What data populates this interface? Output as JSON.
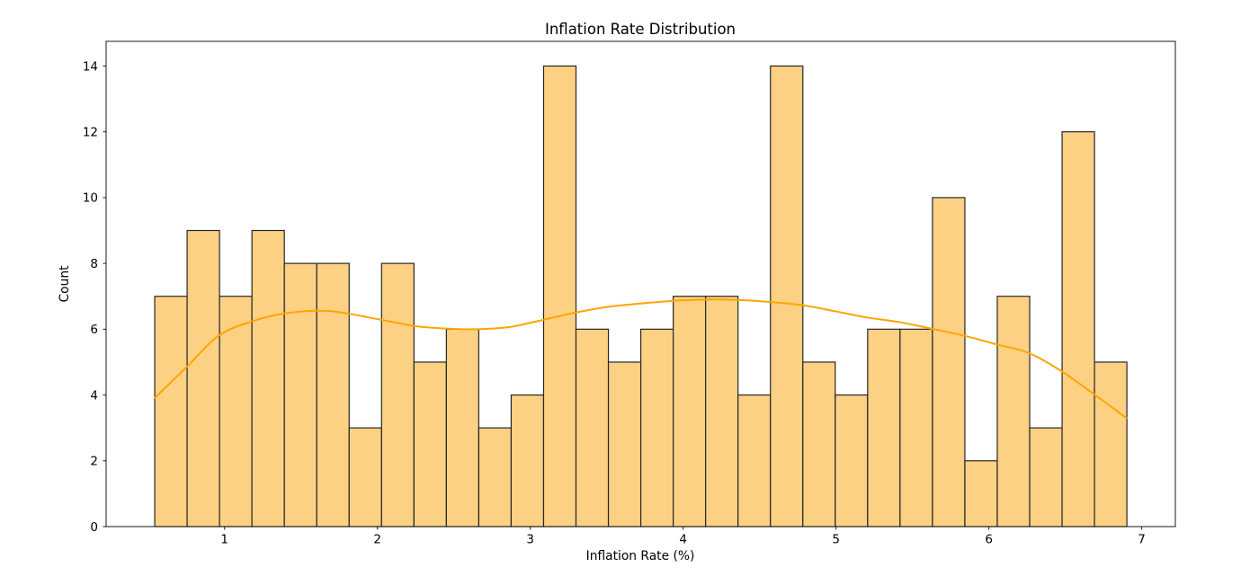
{
  "chart_data": {
    "type": "bar",
    "subtype": "histogram_with_kde",
    "title": "Inflation Rate Distribution",
    "xlabel": "Inflation Rate (%)",
    "ylabel": "Count",
    "xlim": [
      0.225,
      7.22
    ],
    "ylim": [
      0,
      14.75
    ],
    "xticks": [
      1,
      2,
      3,
      4,
      5,
      6,
      7
    ],
    "yticks": [
      0,
      2,
      4,
      6,
      8,
      10,
      12,
      14
    ],
    "grid": false,
    "legend": null,
    "histogram": {
      "n_bins": 30,
      "bin_start": 0.543,
      "bin_width": 0.212,
      "counts": [
        7,
        9,
        7,
        9,
        8,
        8,
        3,
        8,
        5,
        6,
        3,
        4,
        14,
        6,
        5,
        6,
        7,
        7,
        4,
        14,
        5,
        4,
        6,
        6,
        10,
        2,
        7,
        3,
        12,
        5
      ],
      "total_count": 200
    },
    "kde_curve": {
      "points": [
        [
          0.543,
          3.91
        ],
        [
          0.75,
          4.84
        ],
        [
          0.96,
          5.8
        ],
        [
          1.18,
          6.24
        ],
        [
          1.38,
          6.47
        ],
        [
          1.6,
          6.56
        ],
        [
          1.76,
          6.51
        ],
        [
          2.02,
          6.29
        ],
        [
          2.24,
          6.1
        ],
        [
          2.45,
          6.02
        ],
        [
          2.66,
          6.0
        ],
        [
          2.87,
          6.07
        ],
        [
          3.08,
          6.28
        ],
        [
          3.29,
          6.5
        ],
        [
          3.51,
          6.68
        ],
        [
          3.72,
          6.78
        ],
        [
          3.93,
          6.86
        ],
        [
          4.14,
          6.9
        ],
        [
          4.35,
          6.89
        ],
        [
          4.56,
          6.83
        ],
        [
          4.78,
          6.73
        ],
        [
          4.99,
          6.55
        ],
        [
          5.2,
          6.36
        ],
        [
          5.41,
          6.22
        ],
        [
          5.62,
          6.02
        ],
        [
          5.84,
          5.8
        ],
        [
          6.05,
          5.54
        ],
        [
          6.26,
          5.28
        ],
        [
          6.47,
          4.74
        ],
        [
          6.68,
          4.05
        ],
        [
          6.9,
          3.3
        ]
      ]
    },
    "colors": {
      "bar_fill": "#FCD184",
      "bar_edge": "#262626",
      "kde_line": "#FFA500",
      "text": "#000000",
      "spine": "#1a1a1a",
      "background": "#ffffff"
    }
  }
}
